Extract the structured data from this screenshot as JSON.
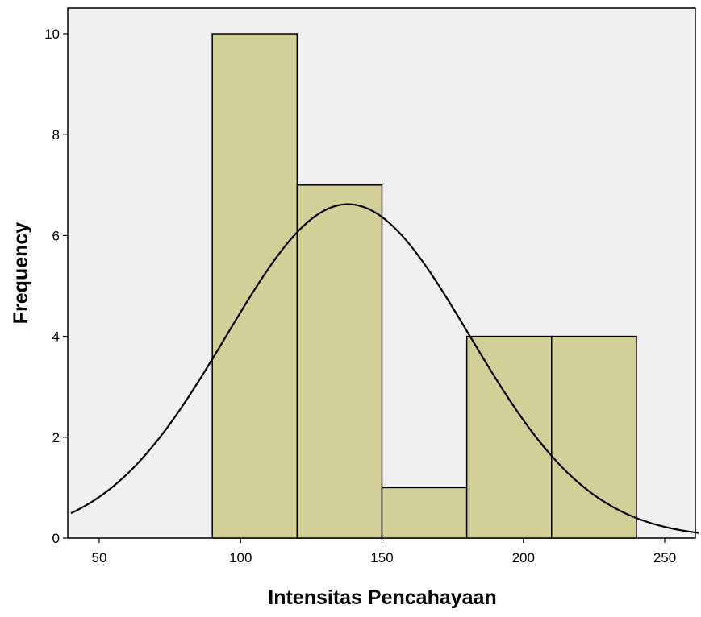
{
  "chart_data": {
    "type": "bar",
    "subtype": "histogram with normal curve",
    "xlabel": "Intensitas Pencahayaan",
    "ylabel": "Frequency",
    "xlim": [
      40,
      262
    ],
    "ylim": [
      0,
      10.5
    ],
    "x_ticks": [
      50,
      100,
      150,
      200,
      250
    ],
    "y_ticks": [
      0,
      2,
      4,
      6,
      8,
      10
    ],
    "bins": [
      {
        "start": 90,
        "end": 120,
        "value": 10
      },
      {
        "start": 120,
        "end": 150,
        "value": 7
      },
      {
        "start": 150,
        "end": 180,
        "value": 1
      },
      {
        "start": 180,
        "end": 210,
        "value": 4
      },
      {
        "start": 210,
        "end": 240,
        "value": 4
      }
    ],
    "normal_curve": {
      "mean": 138,
      "peak": 6.62,
      "sd": 43
    },
    "colors": {
      "bar_fill": "#d3cf99",
      "plot_background": "#f0f0f0",
      "stroke": "#000000"
    },
    "grid": false,
    "legend": "none"
  }
}
